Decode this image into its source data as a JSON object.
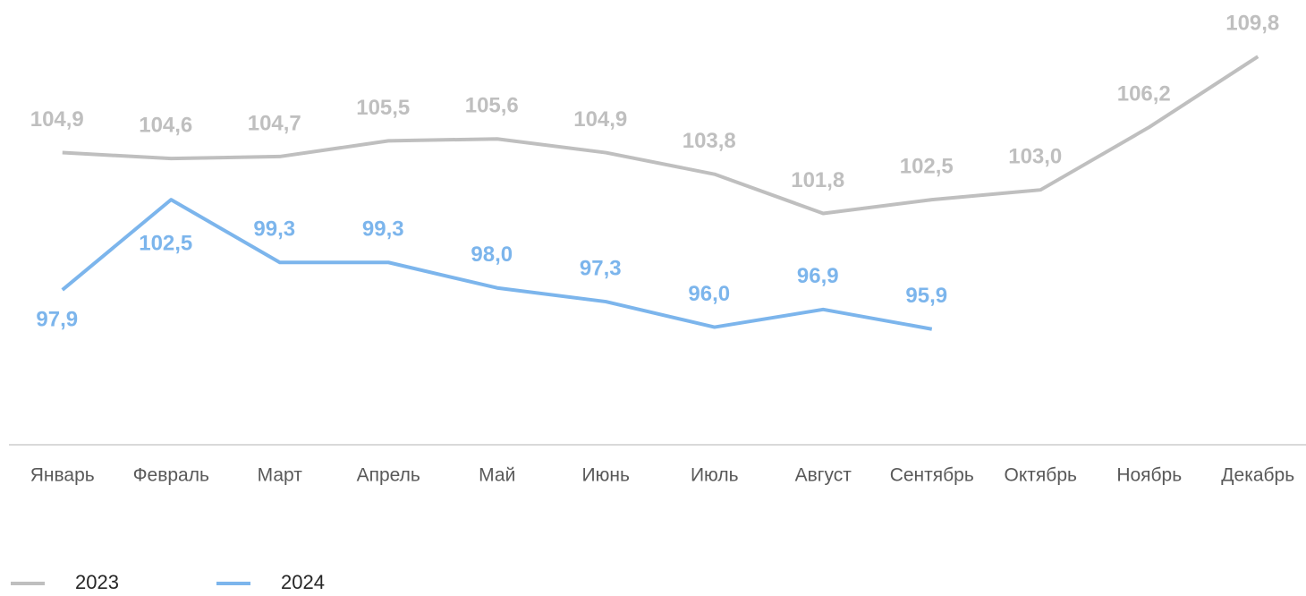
{
  "chart_data": {
    "type": "line",
    "categories": [
      "Январь",
      "Февраль",
      "Март",
      "Апрель",
      "Май",
      "Июнь",
      "Июль",
      "Август",
      "Сентябрь",
      "Октябрь",
      "Ноябрь",
      "Декабрь"
    ],
    "series": [
      {
        "name": "2023",
        "color": "#bfbfbf",
        "values": [
          104.9,
          104.6,
          104.7,
          105.5,
          105.6,
          104.9,
          103.8,
          101.8,
          102.5,
          103.0,
          106.2,
          109.8
        ],
        "value_labels": [
          "104,9",
          "104,6",
          "104,7",
          "105,5",
          "105,6",
          "104,9",
          "103,8",
          "101,8",
          "102,5",
          "103,0",
          "106,2",
          "109,8"
        ]
      },
      {
        "name": "2024",
        "color": "#7cb5ec",
        "values": [
          97.9,
          102.5,
          99.3,
          99.3,
          98.0,
          97.3,
          96.0,
          96.9,
          95.9,
          null,
          null,
          null
        ],
        "value_labels": [
          "97,9",
          "102,5",
          "99,3",
          "99,3",
          "98,0",
          "97,3",
          "96,0",
          "96,9",
          "95,9",
          null,
          null,
          null
        ]
      }
    ],
    "ylim": [
      90,
      112
    ],
    "legend": "bottom-left"
  }
}
